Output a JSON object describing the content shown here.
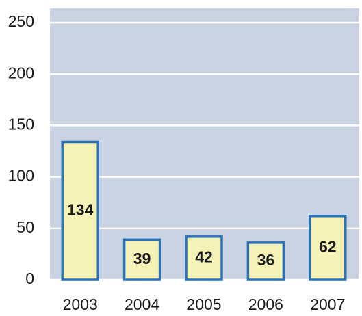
{
  "chart_data": {
    "type": "bar",
    "categories": [
      "2003",
      "2004",
      "2005",
      "2006",
      "2007"
    ],
    "values": [
      134,
      39,
      42,
      36,
      62
    ],
    "color": "#f5f2b8",
    "edge_color": "#2b72b8",
    "background": "#c9d3e1",
    "ylim": [
      0,
      264
    ],
    "yticks": [
      0,
      50,
      100,
      150,
      200,
      250
    ],
    "grid": true
  }
}
